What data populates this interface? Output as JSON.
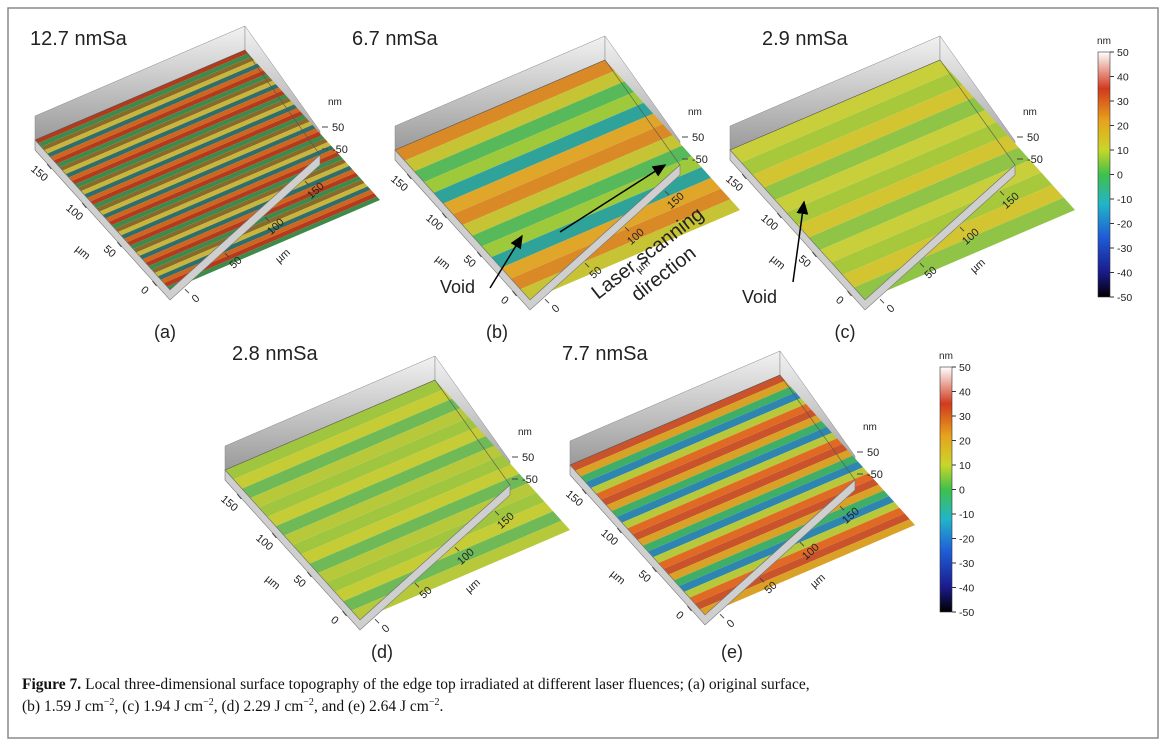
{
  "panels": [
    {
      "title": "12.7  nmSa",
      "label": "(a)",
      "ticks_left": [
        150,
        100,
        50,
        0
      ],
      "ticks_right": [
        0,
        50,
        100,
        150
      ],
      "unit_xy": "µm",
      "z_ticks": [
        50,
        -50
      ],
      "z_unit": "nm"
    },
    {
      "title": "6.7  nmSa",
      "label": "(b)",
      "ticks_left": [
        150,
        100,
        50,
        0
      ],
      "ticks_right": [
        0,
        50,
        100,
        150
      ],
      "unit_xy": "µm",
      "z_ticks": [
        50,
        -50
      ],
      "z_unit": "nm"
    },
    {
      "title": "2.9 nmSa",
      "label": "(c)",
      "ticks_left": [
        150,
        100,
        50,
        0
      ],
      "ticks_right": [
        0,
        50,
        100,
        150
      ],
      "unit_xy": "µm",
      "z_ticks": [
        50,
        -50
      ],
      "z_unit": "nm"
    },
    {
      "title": "2.8  nmSa",
      "label": "(d)",
      "ticks_left": [
        150,
        100,
        50,
        0
      ],
      "ticks_right": [
        0,
        50,
        100,
        150
      ],
      "unit_xy": "µm",
      "z_ticks": [
        50,
        -50
      ],
      "z_unit": "nm"
    },
    {
      "title": "7.7  nmSa",
      "label": "(e)",
      "ticks_left": [
        150,
        100,
        50,
        0
      ],
      "ticks_right": [
        0,
        50,
        100,
        150
      ],
      "unit_xy": "µm",
      "z_ticks": [
        50,
        -50
      ],
      "z_unit": "nm"
    }
  ],
  "annotations": {
    "void_b": "Void",
    "void_c": "Void",
    "laser_line1": "Laser scanning",
    "laser_line2": "direction"
  },
  "colorbars": [
    {
      "unit": "nm",
      "ticks": [
        50,
        40,
        30,
        20,
        10,
        0,
        -10,
        -20,
        -30,
        -40,
        -50
      ]
    },
    {
      "unit": "nm",
      "ticks": [
        50,
        40,
        30,
        20,
        10,
        0,
        -10,
        -20,
        -30,
        -40,
        -50
      ]
    }
  ],
  "caption": {
    "label": "Figure 7.",
    "line1": "Local three-dimensional surface topography of the edge top irradiated at different laser fluences; (a) original surface,",
    "line2": [
      {
        "text": "(b) 1.59 J cm",
        "sup": "−2"
      },
      {
        "text": ", (c) 1.94 J cm",
        "sup": "−2"
      },
      {
        "text": ", (d) 2.29 J cm",
        "sup": "−2"
      },
      {
        "text": ", and (e) 2.64 J cm",
        "sup": "−2"
      },
      {
        "text": "."
      }
    ]
  }
}
